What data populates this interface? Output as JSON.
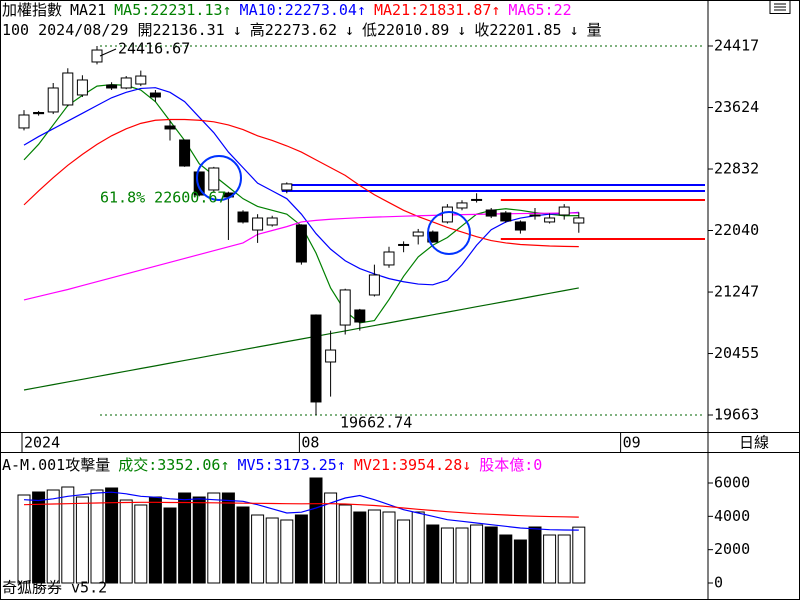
{
  "chart_data": [
    {
      "type": "candlestick",
      "title": "加權指數",
      "subtitle": "MA21",
      "info": [
        "100 2024/08/29 開22136.31",
        "↓",
        "高22273.62",
        "↓",
        "低22010.89",
        "↓",
        "收22201.85",
        "↓",
        "量"
      ],
      "period": "日線",
      "categories": [
        "2024",
        null,
        null,
        null,
        null,
        null,
        null,
        null,
        null,
        null,
        null,
        null,
        null,
        null,
        null,
        null,
        null,
        null,
        null,
        "08",
        null,
        null,
        null,
        null,
        null,
        null,
        null,
        null,
        null,
        null,
        null,
        null,
        null,
        null,
        null,
        null,
        null,
        null,
        null,
        null,
        null,
        "09"
      ],
      "open": [
        23361,
        23560,
        23567,
        23657,
        23786,
        24211,
        23914,
        23876,
        23927,
        23811,
        23386,
        23206,
        22794,
        22562,
        22523,
        22278,
        22046,
        22111,
        22562,
        22111,
        20951,
        20346,
        20822,
        21016,
        21209,
        21596,
        21850,
        21970,
        22020,
        22150,
        22330,
        22433,
        22304,
        22266,
        22150,
        22240,
        22150,
        22240,
        22136.31,
        null,
        null,
        null
      ],
      "high": [
        23590,
        23580,
        23940,
        24130,
        24040,
        24416.67,
        23950,
        24030,
        24100,
        23850,
        23460,
        23210,
        22800,
        22860,
        22540,
        22300,
        22250,
        22230,
        22660,
        22120,
        20960,
        20750,
        21290,
        21030,
        21600,
        21830,
        21900,
        22060,
        22040,
        22380,
        22430,
        22520,
        22330,
        22290,
        22170,
        22330,
        22260,
        22380,
        22273.62,
        null,
        null,
        null
      ],
      "low": [
        23330,
        23520,
        23540,
        23640,
        23760,
        24180,
        23850,
        23860,
        23900,
        23700,
        23200,
        22860,
        22480,
        22540,
        21918,
        22130,
        21880,
        22090,
        22520,
        21600,
        19662.74,
        19900,
        20700,
        20750,
        21190,
        21560,
        21760,
        21860,
        21880,
        22130,
        22300,
        22400,
        22200,
        22140,
        22000,
        22180,
        22130,
        22180,
        22010.89,
        null,
        null,
        null
      ],
      "close": [
        23528,
        23545,
        23876,
        24069,
        23979,
        24365,
        23876,
        24005,
        24030,
        23760,
        23348,
        22871,
        22497,
        22845,
        22472,
        22150,
        22201,
        22201,
        22640,
        21634,
        19831,
        20500,
        21274,
        20861,
        21467,
        21763,
        21860,
        22020,
        21892,
        22342,
        22395,
        22440,
        22226,
        22163,
        22046,
        22235,
        22201,
        22342,
        22201.85,
        null,
        null,
        null
      ],
      "up_color": "#ffffff",
      "down_color": "#000000",
      "series": [
        {
          "name": "MA5:22231.13",
          "arrow": "↑",
          "color": "#008000",
          "values": [
            22950,
            23150,
            23400,
            23650,
            23780,
            23900,
            23920,
            23910,
            23850,
            23700,
            23450,
            23200,
            22900,
            22750,
            22600,
            22450,
            22350,
            22300,
            22250,
            22100,
            21750,
            21300,
            21000,
            20850,
            20880,
            21150,
            21450,
            21700,
            21850,
            21950,
            22100,
            22250,
            22300,
            22320,
            22300,
            22270,
            22250,
            22230,
            22231.13,
            null,
            null,
            null
          ]
        },
        {
          "name": "MA10:22273.04",
          "arrow": "↑",
          "color": "#0000ff",
          "values": [
            23140,
            23250,
            23350,
            23450,
            23550,
            23650,
            23750,
            23820,
            23870,
            23880,
            23820,
            23700,
            23500,
            23300,
            23050,
            22850,
            22650,
            22550,
            22450,
            22250,
            22000,
            21800,
            21650,
            21550,
            21480,
            21420,
            21380,
            21350,
            21340,
            21400,
            21600,
            21850,
            22050,
            22150,
            22200,
            22230,
            22250,
            22260,
            22273.04,
            null,
            null,
            null
          ]
        },
        {
          "name": "MA21:21831.87",
          "arrow": "↑",
          "color": "#ff0000",
          "values": [
            22370,
            22550,
            22720,
            22880,
            23020,
            23150,
            23260,
            23350,
            23420,
            23460,
            23470,
            23470,
            23460,
            23440,
            23400,
            23340,
            23260,
            23200,
            23130,
            23050,
            22950,
            22850,
            22750,
            22620,
            22500,
            22400,
            22300,
            22220,
            22150,
            22080,
            22020,
            21960,
            21910,
            21880,
            21860,
            21850,
            21840,
            21835,
            21831.87,
            null,
            null,
            null
          ]
        },
        {
          "name": "MA65:22",
          "color": "#ff00ff",
          "values": [
            21145,
            21190,
            21235,
            21280,
            21330,
            21380,
            21430,
            21480,
            21530,
            21580,
            21630,
            21680,
            21730,
            21780,
            21830,
            21880,
            21990,
            22040,
            22090,
            22150,
            22170,
            22185,
            22195,
            22205,
            22212,
            22218,
            22224,
            22230,
            22235,
            22240,
            22244,
            22248,
            22252,
            22255,
            22258,
            22261,
            22263,
            22265,
            22267,
            null,
            null,
            null
          ]
        },
        {
          "color": "#006400",
          "values": [
            19985,
            20020,
            20054,
            20089,
            20123,
            20158,
            20193,
            20227,
            20262,
            20296,
            20331,
            20366,
            20400,
            20435,
            20469,
            20504,
            20539,
            20573,
            20608,
            20642,
            20677,
            20712,
            20746,
            20781,
            20815,
            20850,
            20885,
            20919,
            20954,
            20988,
            21023,
            21058,
            21092,
            21127,
            21161,
            21196,
            21231,
            21265,
            21300,
            null,
            null,
            null
          ]
        }
      ],
      "high_label": 24416.67,
      "low_label": 19662.74,
      "fib": {
        "value": 22600.67,
        "label": "61.8% 22600.67",
        "color": "#008000"
      },
      "hlines": [
        {
          "value": 22626,
          "color": "#0000ff",
          "start": 18
        },
        {
          "value": 22549,
          "color": "#0000ff",
          "start": 18
        },
        {
          "value": 22433,
          "color": "#ff0000",
          "start": 33
        },
        {
          "value": 21931,
          "color": "#ff0000",
          "start": 33
        }
      ],
      "ylim": [
        19444,
        24726
      ],
      "yticks": [
        24417,
        23624,
        22832,
        22040,
        21247,
        20455,
        19663
      ]
    },
    {
      "type": "bar",
      "title": "A-M.001攻擊量",
      "note": "股本億:0",
      "note_color": "#ff00ff",
      "footer": "奇狐勝券 v5.2",
      "bar_series": {
        "name": "成交:3352.06",
        "arrow": "↑",
        "color": "#008000",
        "values": [
          5280,
          5460,
          5580,
          5760,
          5160,
          5580,
          5700,
          4980,
          4680,
          5160,
          4500,
          5400,
          5160,
          5400,
          5400,
          4560,
          4080,
          3900,
          3780,
          4080,
          6300,
          5400,
          4680,
          4260,
          4380,
          4260,
          3780,
          4260,
          3480,
          3300,
          3300,
          3480,
          3360,
          2880,
          2580,
          3360,
          2880,
          2880,
          3352.06,
          null,
          null,
          null
        ]
      },
      "series": [
        {
          "name": "MV5:3173.25",
          "arrow": "↑",
          "color": "#0000ff",
          "values": [
            5000,
            4950,
            5050,
            5200,
            5300,
            5400,
            5450,
            5350,
            5200,
            5150,
            5050,
            5000,
            5050,
            5000,
            4950,
            4900,
            4700,
            4450,
            4200,
            4250,
            4500,
            4800,
            5100,
            5250,
            5000,
            4700,
            4400,
            4200,
            4000,
            3800,
            3700,
            3600,
            3500,
            3400,
            3300,
            3250,
            3200,
            3180,
            3173.25,
            null,
            null,
            null
          ]
        },
        {
          "name": "MV21:3954.28",
          "arrow": "↓",
          "color": "#ff0000",
          "values": [
            4700,
            4720,
            4740,
            4760,
            4780,
            4800,
            4820,
            4830,
            4840,
            4840,
            4830,
            4830,
            4820,
            4810,
            4800,
            4790,
            4780,
            4770,
            4760,
            4750,
            4760,
            4760,
            4740,
            4700,
            4650,
            4580,
            4500,
            4420,
            4350,
            4280,
            4220,
            4160,
            4120,
            4080,
            4040,
            4010,
            3985,
            3970,
            3954.28,
            null,
            null,
            null
          ]
        }
      ],
      "ylim": [
        -900,
        7680
      ],
      "yticks": [
        6000,
        4000,
        2000,
        0
      ]
    }
  ]
}
